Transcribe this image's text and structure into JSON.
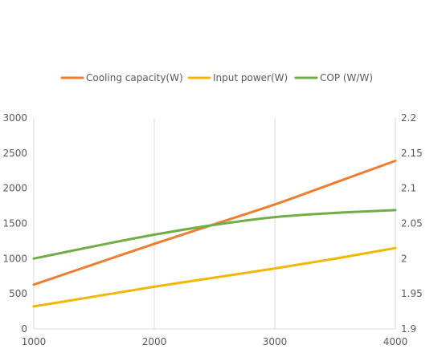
{
  "chart_data": {
    "type": "line",
    "x": [
      1000,
      1500,
      2000,
      2500,
      3000,
      3500,
      4000
    ],
    "xlim": [
      1000,
      4000
    ],
    "xticks": [
      "1000",
      "2000",
      "3000",
      "4000"
    ],
    "ylim_left": [
      0,
      3000
    ],
    "yticks_left": [
      "0",
      "500",
      "1000",
      "1500",
      "2000",
      "2500",
      "3000"
    ],
    "ylim_right": [
      1.9,
      2.2
    ],
    "yticks_right": [
      "1.9",
      "1.95",
      "2",
      "2.05",
      "2.1",
      "2.15",
      "2.2"
    ],
    "grid": "vertical",
    "legend_position": "top",
    "series": [
      {
        "name": "Cooling capacity(W)",
        "axis": "left",
        "color": "#ED7D31",
        "values": [
          630,
          920,
          1210,
          1490,
          1770,
          2080,
          2390
        ]
      },
      {
        "name": "Input power(W)",
        "axis": "left",
        "color": "#F2B705",
        "values": [
          320,
          460,
          600,
          730,
          860,
          1000,
          1150
        ]
      },
      {
        "name": "COP  (W/W)",
        "axis": "right",
        "color": "#70AD47",
        "values": [
          2.0,
          2.0175,
          2.034,
          2.048,
          2.059,
          2.065,
          2.069
        ]
      }
    ]
  }
}
